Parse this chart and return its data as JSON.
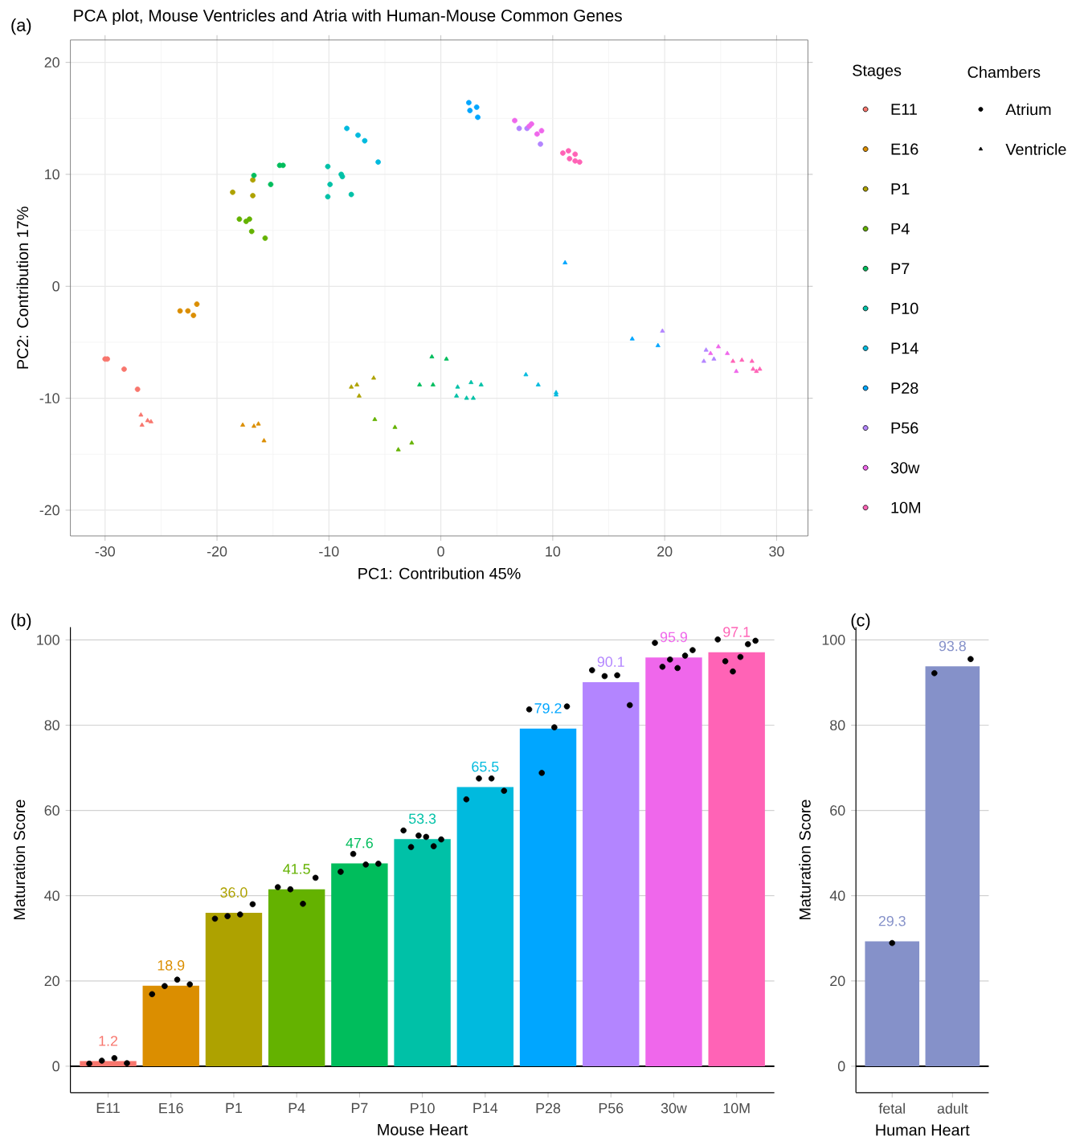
{
  "chart_data": [
    {
      "type": "scatter",
      "title": "PCA plot, Mouse Ventricles and Atria with Human-Mouse Common Genes",
      "xlabel": "PC1: Contribution 45%",
      "ylabel": "PC2: Contribution 17%",
      "legend_title": "Stages",
      "annotations": [
        "(a)",
        "Chambers"
      ],
      "xlim": [
        -33.1,
        32.8
      ],
      "ylim": [
        -22.3,
        22
      ],
      "xticks": [
        -30,
        -20,
        -10,
        0,
        10,
        20,
        30
      ],
      "yticks": [
        -20,
        -10,
        0,
        10,
        20
      ],
      "grid": true,
      "legend": "right",
      "series": [
        {
          "name": "E11",
          "color": "#f8766d",
          "marker": "circle",
          "x": [
            -30,
            -29.8,
            -28.3,
            -27.1
          ],
          "values": [
            -6.5,
            -6.5,
            -7.4,
            -9.2
          ]
        },
        {
          "name": "E16",
          "color": "#db8e00",
          "marker": "circle",
          "x": [
            -23.3,
            -22.6,
            -22.1,
            -21.8
          ],
          "values": [
            -2.2,
            -2.2,
            -2.6,
            -1.6
          ]
        },
        {
          "name": "P1",
          "color": "#aea200",
          "marker": "circle",
          "x": [
            -18.6,
            -16.8,
            -16.8
          ],
          "values": [
            8.4,
            9.5,
            8.1
          ]
        },
        {
          "name": "P4",
          "color": "#64b200",
          "marker": "circle",
          "x": [
            -18.0,
            -17.4,
            -17.1,
            -16.9,
            -15.7
          ],
          "values": [
            6.0,
            5.8,
            6.0,
            4.9,
            4.3
          ]
        },
        {
          "name": "P7",
          "color": "#00bd5c",
          "marker": "circle",
          "x": [
            -16.7,
            -15.2,
            -14.4,
            -14.1
          ],
          "values": [
            9.9,
            9.1,
            10.8,
            10.8
          ]
        },
        {
          "name": "P10",
          "color": "#00c1a7",
          "marker": "circle",
          "x": [
            -10.1,
            -10.1,
            -9.9,
            -8.9,
            -8.8,
            -8.0
          ],
          "values": [
            10.7,
            8.0,
            9.1,
            10.0,
            9.8,
            8.2
          ]
        },
        {
          "name": "P14",
          "color": "#00bade",
          "marker": "circle",
          "x": [
            -8.4,
            -7.4,
            -6.8,
            -5.6
          ],
          "values": [
            14.1,
            13.5,
            13.0,
            11.1
          ]
        },
        {
          "name": "P28",
          "color": "#00a6ff",
          "marker": "circle",
          "x": [
            2.5,
            2.6,
            3.2,
            3.3
          ],
          "values": [
            16.4,
            15.7,
            16.0,
            15.1
          ]
        },
        {
          "name": "P56",
          "color": "#b385ff",
          "marker": "circle",
          "x": [
            7.0,
            7.7,
            8.9
          ],
          "values": [
            14.1,
            14.1,
            12.7
          ]
        },
        {
          "name": "30w",
          "color": "#ef67eb",
          "marker": "circle",
          "x": [
            6.6,
            7.9,
            8.1,
            8.6,
            9.0
          ],
          "values": [
            14.8,
            14.3,
            14.5,
            13.6,
            13.9
          ]
        },
        {
          "name": "10M",
          "color": "#ff63b6",
          "marker": "circle",
          "x": [
            10.9,
            11.4,
            11.5,
            12.0,
            12.0,
            12.4
          ],
          "values": [
            11.9,
            12.1,
            11.4,
            11.8,
            11.2,
            11.1
          ]
        },
        {
          "color": "#f8766d",
          "marker": "triangle",
          "x": [
            -26.8,
            -26.7,
            -26.2,
            -25.9
          ],
          "values": [
            -11.5,
            -12.4,
            -12.0,
            -12.1
          ]
        },
        {
          "color": "#db8e00",
          "marker": "triangle",
          "x": [
            -17.7,
            -16.7,
            -16.3,
            -15.8
          ],
          "values": [
            -12.4,
            -12.5,
            -12.3,
            -13.8
          ]
        },
        {
          "color": "#aea200",
          "marker": "triangle",
          "x": [
            -8.0,
            -7.5,
            -7.3,
            -6.0
          ],
          "values": [
            -9.0,
            -8.8,
            -9.8,
            -8.2
          ]
        },
        {
          "color": "#64b200",
          "marker": "triangle",
          "x": [
            -5.9,
            -4.1,
            -3.8,
            -2.6
          ],
          "values": [
            -11.9,
            -12.6,
            -14.6,
            -14.0
          ]
        },
        {
          "color": "#00bd5c",
          "marker": "triangle",
          "x": [
            -1.9,
            -0.8,
            -0.7,
            0.5
          ],
          "values": [
            -8.8,
            -6.3,
            -8.8,
            -6.5
          ]
        },
        {
          "color": "#00c1a7",
          "marker": "triangle",
          "x": [
            1.4,
            1.5,
            2.3,
            2.7,
            2.9,
            3.6
          ],
          "values": [
            -9.8,
            -9.0,
            -10.0,
            -8.6,
            -10.0,
            -8.8
          ]
        },
        {
          "color": "#00bade",
          "marker": "triangle",
          "x": [
            7.6,
            8.7,
            10.3,
            10.3
          ],
          "values": [
            -7.9,
            -8.8,
            -9.5,
            -9.7
          ]
        },
        {
          "color": "#00a6ff",
          "marker": "triangle",
          "x": [
            11.1,
            17.1,
            19.4
          ],
          "values": [
            2.1,
            -4.7,
            -5.3
          ]
        },
        {
          "color": "#b385ff",
          "marker": "triangle",
          "x": [
            19.8,
            23.7,
            23.5,
            24.4
          ],
          "values": [
            -4.0,
            -5.7,
            -6.7,
            -6.5
          ]
        },
        {
          "color": "#ef67eb",
          "marker": "triangle",
          "x": [
            24.1,
            24.8,
            25.6,
            26.4
          ],
          "values": [
            -6.0,
            -5.4,
            -6.0,
            -7.6
          ]
        },
        {
          "color": "#ff63b6",
          "marker": "triangle",
          "x": [
            26.1,
            26.9,
            27.8,
            27.9,
            28.2,
            28.5
          ],
          "values": [
            -6.7,
            -6.6,
            -6.7,
            -7.4,
            -7.6,
            -7.4
          ]
        },
        {
          "name": "Atrium",
          "color": "#000000",
          "marker": "circle"
        },
        {
          "name": "Ventricle",
          "color": "#000000",
          "marker": "triangle"
        }
      ]
    },
    {
      "type": "bar",
      "ylabel": "Maturation Score",
      "xlabel": "Mouse Heart",
      "annotations": [
        "(b)"
      ],
      "categories": [
        "E11",
        "E16",
        "P1",
        "P4",
        "P7",
        "P10",
        "P14",
        "P28",
        "P56",
        "30w",
        "10M"
      ],
      "ylim": [
        -6.2,
        103
      ],
      "yticks": [
        0,
        20,
        40,
        60,
        80,
        100
      ],
      "grid": "y",
      "ref_lines": [
        {
          "axis": "y",
          "value": 0,
          "color": "#000000"
        }
      ],
      "series": [
        {
          "type": "bar",
          "colors": [
            "#f8766d",
            "#db8e00",
            "#aea200",
            "#64b200",
            "#00bd5c",
            "#00c1a7",
            "#00bade",
            "#00a6ff",
            "#b385ff",
            "#ef67eb",
            "#ff63b6"
          ],
          "values": [
            1.2,
            18.9,
            36.0,
            41.5,
            47.6,
            53.3,
            65.5,
            79.2,
            90.1,
            95.9,
            97.1
          ],
          "value_labels": [
            "1.2",
            "18.9",
            "36.0",
            "41.5",
            "47.6",
            "53.3",
            "65.5",
            "79.2",
            "90.1",
            "95.9",
            "97.1"
          ]
        },
        {
          "type": "scatter",
          "color": "#000000",
          "marker": "circle",
          "x": [
            "E11",
            "E11",
            "E11",
            "E11",
            "E16",
            "E16",
            "E16",
            "E16",
            "P1",
            "P1",
            "P1",
            "P1",
            "P4",
            "P4",
            "P4",
            "P4",
            "P7",
            "P7",
            "P7",
            "P7",
            "P10",
            "P10",
            "P10",
            "P10",
            "P10",
            "P10",
            "P14",
            "P14",
            "P14",
            "P14",
            "P28",
            "P28",
            "P28",
            "P28",
            "P56",
            "P56",
            "P56",
            "P56",
            "30w",
            "30w",
            "30w",
            "30w",
            "30w",
            "30w",
            "10M",
            "10M",
            "10M",
            "10M",
            "10M",
            "10M"
          ],
          "values": [
            0.6,
            1.3,
            1.9,
            0.7,
            16.9,
            18.8,
            20.3,
            19.2,
            34.6,
            35.2,
            35.6,
            38.0,
            42.0,
            41.5,
            38.1,
            44.2,
            45.6,
            49.8,
            47.3,
            47.5,
            55.3,
            51.4,
            54.1,
            53.8,
            51.6,
            53.2,
            62.6,
            67.5,
            67.5,
            64.6,
            83.7,
            68.8,
            79.5,
            84.4,
            92.9,
            91.5,
            91.7,
            84.7,
            99.3,
            93.7,
            95.4,
            93.4,
            96.3,
            97.6,
            100.1,
            95.0,
            92.6,
            96.0,
            99.0,
            99.8
          ]
        }
      ]
    },
    {
      "type": "bar",
      "ylabel": "Maturation Score",
      "xlabel": "Human Heart",
      "annotations": [
        "(c)"
      ],
      "categories": [
        "fetal",
        "adult"
      ],
      "ylim": [
        -6.2,
        103
      ],
      "yticks": [
        0,
        20,
        40,
        60,
        80,
        100
      ],
      "grid": "y",
      "ref_lines": [
        {
          "axis": "y",
          "value": 0,
          "color": "#000000"
        }
      ],
      "series": [
        {
          "type": "bar",
          "colors": [
            "#8591c9",
            "#8591c9"
          ],
          "values": [
            29.3,
            93.8
          ],
          "value_labels": [
            "29.3",
            "93.8"
          ]
        },
        {
          "type": "scatter",
          "color": "#000000",
          "marker": "circle",
          "x": [
            "fetal",
            "adult",
            "adult"
          ],
          "values": [
            28.9,
            92.2,
            95.5
          ]
        }
      ]
    }
  ]
}
